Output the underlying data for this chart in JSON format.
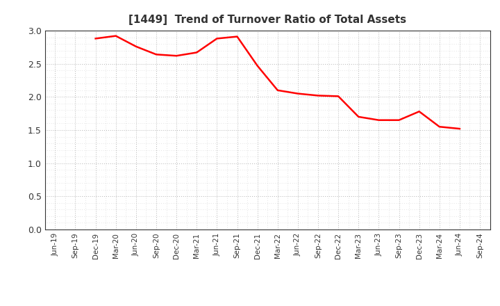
{
  "title": "[1449]  Trend of Turnover Ratio of Total Assets",
  "line_color": "#FF0000",
  "line_width": 1.8,
  "background_color": "#FFFFFF",
  "grid_color": "#AAAAAA",
  "ylim": [
    0.0,
    3.0
  ],
  "yticks": [
    0.0,
    0.5,
    1.0,
    1.5,
    2.0,
    2.5,
    3.0
  ],
  "values": [
    null,
    null,
    2.88,
    2.92,
    2.76,
    2.64,
    2.62,
    2.67,
    2.88,
    2.91,
    2.47,
    2.1,
    2.05,
    2.02,
    2.01,
    1.7,
    1.65,
    1.65,
    1.78,
    1.55,
    1.52,
    null
  ],
  "xtick_labels": [
    "Jun-19",
    "Sep-19",
    "Dec-19",
    "Mar-20",
    "Jun-20",
    "Sep-20",
    "Dec-20",
    "Mar-21",
    "Jun-21",
    "Sep-21",
    "Dec-21",
    "Mar-22",
    "Jun-22",
    "Sep-22",
    "Dec-22",
    "Mar-23",
    "Jun-23",
    "Sep-23",
    "Dec-23",
    "Mar-24",
    "Jun-24",
    "Sep-24"
  ],
  "title_fontsize": 11,
  "title_color": "#333333",
  "tick_label_color": "#333333",
  "spine_color": "#333333"
}
